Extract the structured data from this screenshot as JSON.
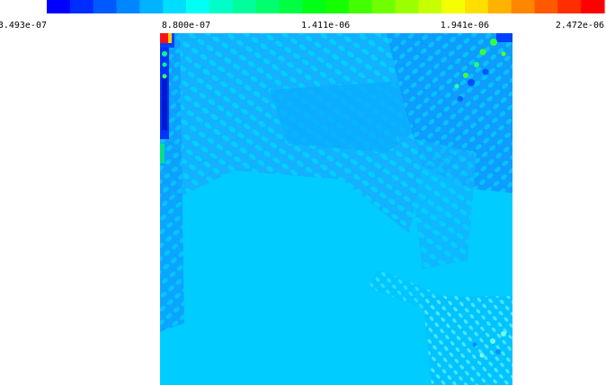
{
  "chart_data": {
    "type": "heatmap",
    "title": "",
    "xlabel": "",
    "ylabel": "",
    "legend": "top",
    "colorbar": {
      "min": 3.493e-07,
      "max": 2.472e-06,
      "tick_values": [
        3.493e-07,
        8.8e-07,
        1.411e-06,
        1.941e-06,
        2.472e-06
      ],
      "tick_labels": [
        "3.493e-07",
        "8.800e-07",
        "1.411e-06",
        "1.941e-06",
        "2.472e-06"
      ],
      "colormap": [
        "#0000ff",
        "#0080ff",
        "#00ffff",
        "#00ff80",
        "#00ff00",
        "#80ff00",
        "#ffff00",
        "#ff8000",
        "#ff0000"
      ],
      "bands": 24
    },
    "field": {
      "background_value": 1.05e-06,
      "dominant_color": "#00ccff",
      "upper_region_color": "#0aaeff",
      "low_value_color": "#0033ff",
      "high_value_color": "#ff0000",
      "features": [
        "high-value spot at top-left corner",
        "low-value strip along left edge",
        "green highlights near top-right corner",
        "lighter ripples near bottom-right corner"
      ]
    }
  }
}
